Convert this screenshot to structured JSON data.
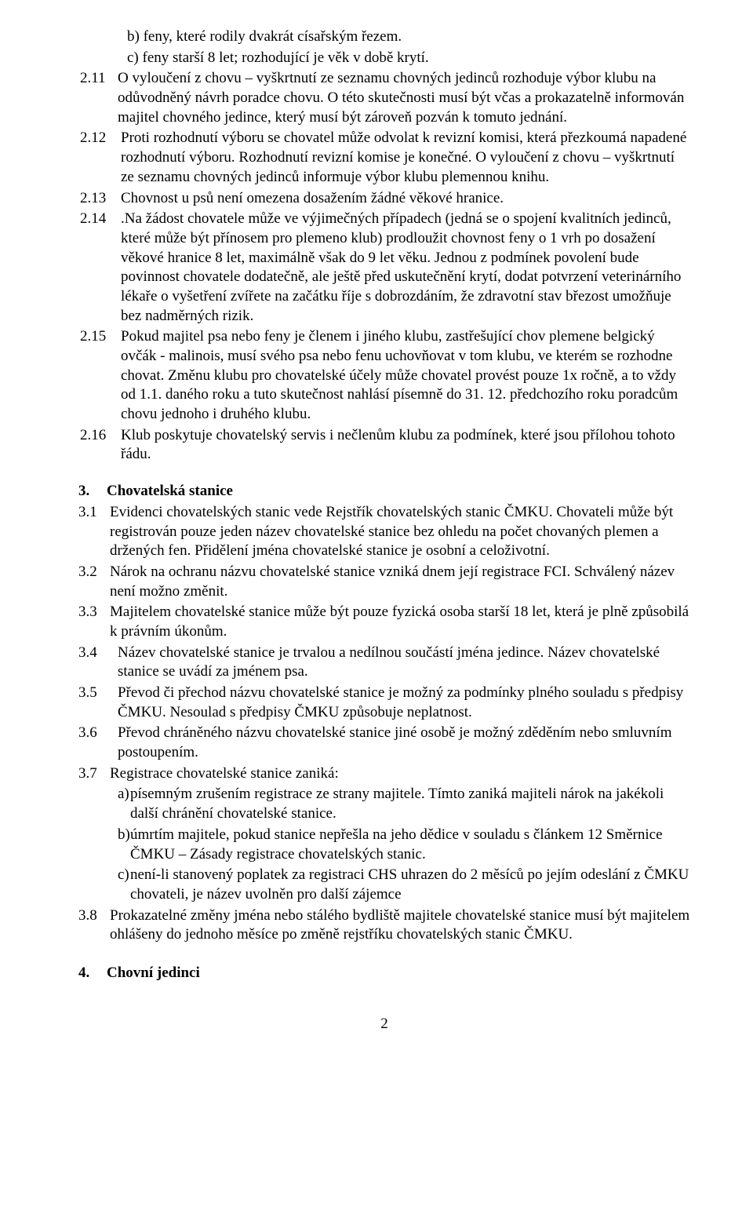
{
  "items_top": {
    "b": "feny, které rodily dvakrát císařským řezem.",
    "c": "feny starší 8 let; rozhodující je věk v době krytí."
  },
  "p211_num": "2.11",
  "p211": "O vyloučení z chovu – vyškrtnutí ze seznamu chovných jedinců rozhoduje výbor klubu na odůvodněný návrh poradce chovu. O této skutečnosti musí být včas a prokazatelně informován majitel chovného jedince, který musí být zároveň pozván k tomuto jednání.",
  "p212_num": "2.12",
  "p212": "Proti rozhodnutí výboru se chovatel může odvolat k revizní komisi, která přezkoumá napadené rozhodnutí výboru. Rozhodnutí revizní komise je konečné. O vyloučení z chovu – vyškrtnutí ze seznamu chovných jedinců informuje výbor klubu plemennou knihu.",
  "p213_num": "2.13",
  "p213": "Chovnost u psů není omezena dosažením žádné věkové hranice.",
  "p214_num": "2.14",
  "p214": ".Na žádost chovatele může ve výjimečných případech (jedná se o spojení kvalitních jedinců, které může být přínosem pro plemeno klub) prodloužit chovnost feny o 1 vrh po dosažení věkové hranice 8 let, maximálně však do 9 let věku. Jednou z podmínek povolení bude povinnost chovatele dodatečně, ale ještě před uskutečnění krytí, dodat potvrzení veterinárního lékaře o vyšetření zvířete na začátku říje s dobrozdáním, že zdravotní stav březost umožňuje bez nadměrných rizik.",
  "p215_num": "2.15",
  "p215": "Pokud majitel psa nebo feny je členem i jiného klubu, zastřešující chov plemene belgický ovčák - malinois, musí svého psa nebo fenu uchovňovat v tom klubu, ve kterém se rozhodne chovat. Změnu klubu pro chovatelské účely může chovatel provést pouze 1x ročně, a to vždy od 1.1. daného roku a tuto skutečnost nahlásí písemně do 31. 12. předchozího roku poradcům chovu jednoho i druhého klubu.",
  "p216_num": "2.16",
  "p216": "Klub poskytuje chovatelský servis i nečlenům klubu za podmínek, které jsou přílohou tohoto řádu.",
  "sec3_num": "3.",
  "sec3_title": "Chovatelská stanice",
  "p31_num": "3.1",
  "p31": "Evidenci chovatelských stanic vede Rejstřík chovatelských stanic ČMKU. Chovateli může být registrován pouze jeden název chovatelské stanice bez ohledu na počet chovaných plemen a držených fen. Přidělení jména chovatelské stanice je osobní a celoživotní.",
  "p32_num": "3.2",
  "p32": "Nárok na ochranu názvu chovatelské stanice vzniká dnem její registrace FCI. Schválený název není možno změnit.",
  "p33_num": "3.3",
  "p33": "Majitelem chovatelské stanice může být pouze fyzická osoba starší 18 let, která je plně způsobilá k právním úkonům.",
  "p34_num": "3.4",
  "p34": "Název chovatelské stanice je trvalou a nedílnou součástí jména jedince. Název chovatelské stanice se uvádí za jménem psa.",
  "p35_num": "3.5",
  "p35": "Převod či přechod názvu chovatelské stanice je možný za podmínky plného souladu s předpisy ČMKU. Nesoulad s předpisy ČMKU způsobuje neplatnost.",
  "p36_num": "3.6",
  "p36": "Převod chráněného názvu chovatelské stanice jiné osobě je možný zděděním nebo smluvním postoupením.",
  "p37_num": "3.7",
  "p37": "Registrace chovatelské stanice zaniká:",
  "p37a": "písemným zrušením registrace ze strany majitele. Tímto zaniká majiteli nárok na jakékoli další chránění chovatelské stanice.",
  "p37b": "úmrtím majitele, pokud stanice nepřešla na jeho dědice v souladu s článkem 12 Směrnice ČMKU – Zásady registrace chovatelských stanic.",
  "p37c": "není-li stanovený poplatek za registraci CHS uhrazen do 2 měsíců po jejím odeslání z ČMKU chovateli, je název uvolněn pro další zájemce",
  "p38_num": "3.8",
  "p38": "Prokazatelné změny jména nebo stálého bydliště majitele chovatelské stanice musí být majitelem ohlášeny do jednoho měsíce po změně rejstříku chovatelských stanic ČMKU.",
  "sec4_num": "4.",
  "sec4_title": "Chovní jedinci",
  "page_number": "2",
  "letters": {
    "a": "a)",
    "b": "b)",
    "c": "c)"
  }
}
